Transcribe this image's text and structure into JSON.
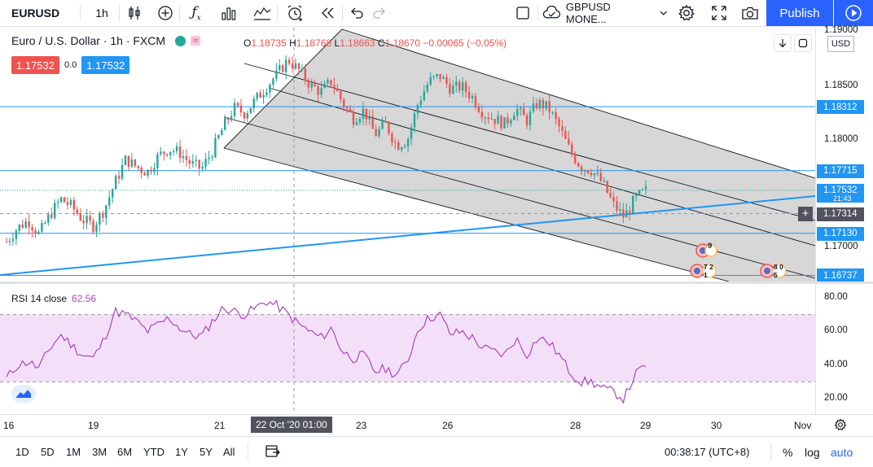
{
  "toolbar": {
    "symbol": "EURUSD",
    "interval": "1h",
    "layout_name": "GBPUSD MONE...",
    "publish_label": "Publish"
  },
  "legend": {
    "title": "Euro / U.S. Dollar · 1h · FXCM",
    "ohlc_o_key": "O",
    "ohlc_o": "1.18735",
    "ohlc_h_key": "H",
    "ohlc_h": "1.18768",
    "ohlc_l_key": "L",
    "ohlc_l": "1.18663",
    "ohlc_c_key": "C",
    "ohlc_c": "1.18670",
    "ohlc_change": "−0.00065 (−0.05%)",
    "bid": "1.17532",
    "spread": "0.0",
    "ask": "1.17532",
    "wave_badge": "≈"
  },
  "price_axis": {
    "currency": "USD",
    "labels": [
      "1.18500",
      "1.18000",
      "1.17000"
    ],
    "top_partial": "1.19000",
    "tags": [
      {
        "value": "1.18312",
        "color": "#2196f3"
      },
      {
        "value": "1.17715",
        "color": "#2196f3"
      },
      {
        "value": "1.17532",
        "color": "#2196f3"
      },
      {
        "value": "1.17314",
        "color": "#50535e"
      },
      {
        "value": "1.17130",
        "color": "#2196f3"
      },
      {
        "value": "1.16737",
        "color": "#2196f3"
      }
    ],
    "countdown": "21:43"
  },
  "rsi": {
    "label": "RSI 14 close",
    "value": "62.56",
    "axis_labels": [
      "80.00",
      "60.00",
      "40.00",
      "20.00"
    ],
    "upper": 70,
    "lower": 30
  },
  "time_axis": {
    "labels": [
      "16",
      "19",
      "21",
      "23",
      "26",
      "28",
      "29",
      "30",
      "Nov"
    ],
    "crosshair": "22 Oct '20  01:00"
  },
  "events": [
    {
      "label": "9"
    },
    {
      "label": "7 2 1"
    },
    {
      "label": "8 0 5"
    }
  ],
  "bottom_bar": {
    "ranges": [
      "1D",
      "5D",
      "1M",
      "3M",
      "6M",
      "YTD",
      "1Y",
      "5Y",
      "All"
    ],
    "clock": "00:38:17 (UTC+8)",
    "percent": "%",
    "log": "log",
    "auto": "auto"
  },
  "colors": {
    "accent": "#2962ff",
    "up": "#26a69a",
    "down": "#ef5350",
    "rsi_line": "#ab47bc",
    "rsi_band": "#f3e0f8",
    "level_line": "#2196f3",
    "channel_fill": "#c9c9c9"
  },
  "chart_data": {
    "type": "candlestick",
    "symbol": "EURUSD",
    "interval": "1h",
    "ylim": [
      1.1668,
      1.1905
    ],
    "horizontal_levels": [
      1.18312,
      1.17715,
      1.1713,
      1.16737
    ],
    "last_price": 1.17532,
    "crosshair_price": 1.17314,
    "x_ticks": [
      "16",
      "19",
      "21",
      "23",
      "26",
      "28",
      "29",
      "30",
      "Nov"
    ],
    "close_path": [
      1.1705,
      1.1718,
      1.1725,
      1.1712,
      1.173,
      1.1745,
      1.1738,
      1.1726,
      1.172,
      1.1735,
      1.176,
      1.1782,
      1.1775,
      1.177,
      1.1785,
      1.1792,
      1.1788,
      1.1778,
      1.1773,
      1.179,
      1.1812,
      1.183,
      1.1825,
      1.1838,
      1.185,
      1.1862,
      1.1875,
      1.1865,
      1.1852,
      1.1845,
      1.1855,
      1.1835,
      1.182,
      1.1828,
      1.1805,
      1.1815,
      1.1795,
      1.18,
      1.1835,
      1.1855,
      1.186,
      1.1848,
      1.185,
      1.184,
      1.1825,
      1.182,
      1.1815,
      1.183,
      1.1818,
      1.1835,
      1.183,
      1.1812,
      1.179,
      1.1775,
      1.1772,
      1.176,
      1.174,
      1.1728,
      1.1745,
      1.1753
    ],
    "rsi_path": [
      32,
      40,
      42,
      38,
      50,
      58,
      52,
      46,
      44,
      55,
      72,
      70,
      66,
      60,
      64,
      68,
      62,
      58,
      57,
      66,
      74,
      72,
      70,
      74,
      78,
      75,
      70,
      64,
      60,
      56,
      62,
      48,
      44,
      46,
      36,
      38,
      34,
      42,
      62,
      68,
      70,
      58,
      60,
      56,
      50,
      48,
      46,
      56,
      46,
      56,
      54,
      46,
      36,
      30,
      30,
      26,
      24,
      20,
      34,
      40
    ]
  }
}
